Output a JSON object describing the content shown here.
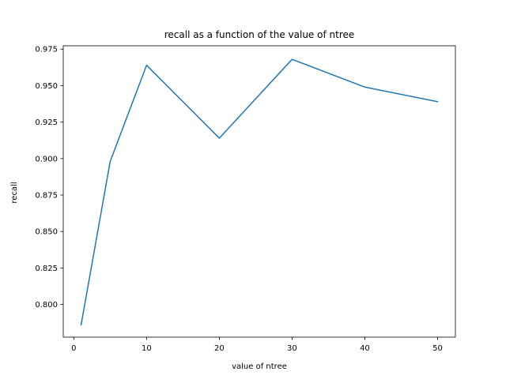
{
  "chart_data": {
    "type": "line",
    "title": "recall as a function of the value of ntree",
    "xlabel": "value of ntree",
    "ylabel": "recall",
    "xlim": [
      -1.45,
      52.45
    ],
    "ylim": [
      0.7776,
      0.9773
    ],
    "x_ticks": [
      0,
      10,
      20,
      30,
      40,
      50
    ],
    "y_ticks": [
      0.8,
      0.825,
      0.85,
      0.875,
      0.9,
      0.925,
      0.95,
      0.975
    ],
    "y_tick_labels": [
      "0.800",
      "0.825",
      "0.850",
      "0.875",
      "0.900",
      "0.925",
      "0.950",
      "0.975"
    ],
    "grid": false,
    "series": [
      {
        "color": "#1f77b4",
        "x": [
          1,
          5,
          10,
          20,
          30,
          40,
          50
        ],
        "y": [
          0.786,
          0.898,
          0.964,
          0.914,
          0.968,
          0.949,
          0.939
        ]
      }
    ]
  }
}
